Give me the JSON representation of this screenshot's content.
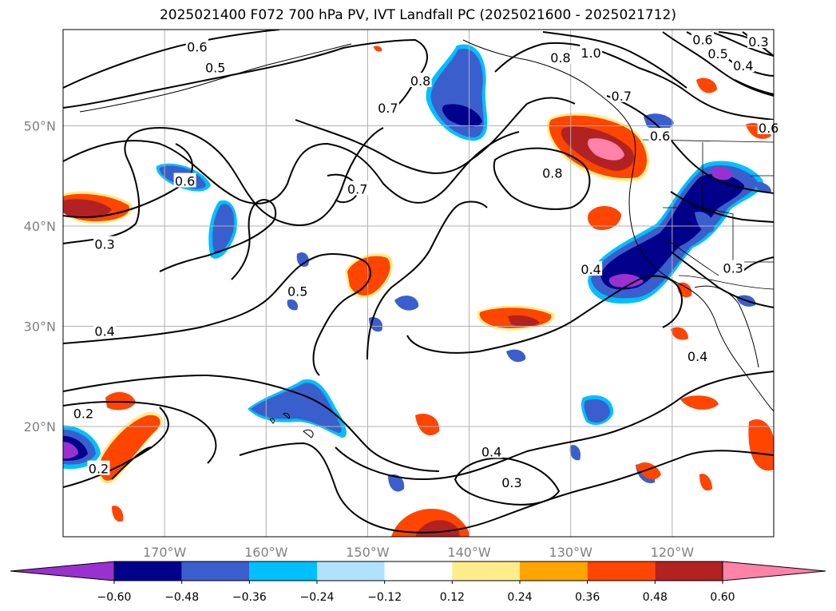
{
  "title": "2025021400 F072 700 hPa PV, IVT Landfall PC (2025021600 - 2025021712)",
  "map": {
    "lon_range": [
      -180,
      -110
    ],
    "lat_range": [
      10,
      60
    ],
    "lon_ticks": [
      {
        "value": -170,
        "label": "170°W"
      },
      {
        "value": -160,
        "label": "160°W"
      },
      {
        "value": -150,
        "label": "150°W"
      },
      {
        "value": -140,
        "label": "140°W"
      },
      {
        "value": -130,
        "label": "130°W"
      },
      {
        "value": -120,
        "label": "120°W"
      }
    ],
    "lat_ticks": [
      {
        "value": 20,
        "label": "20°N"
      },
      {
        "value": 30,
        "label": "30°N"
      },
      {
        "value": 40,
        "label": "40°N"
      },
      {
        "value": 50,
        "label": "50°N"
      }
    ],
    "grid": true,
    "contour_labels": [
      {
        "text": "0.6",
        "lon": -166.8,
        "lat": 57.9
      },
      {
        "text": "0.5",
        "lon": -165.0,
        "lat": 55.8
      },
      {
        "text": "0.7",
        "lon": -148.0,
        "lat": 51.8
      },
      {
        "text": "0.8",
        "lon": -144.8,
        "lat": 54.5
      },
      {
        "text": "0.8",
        "lon": -131.0,
        "lat": 56.8
      },
      {
        "text": "1.0",
        "lon": -128.0,
        "lat": 57.3
      },
      {
        "text": "0.7",
        "lon": -125.0,
        "lat": 53.0
      },
      {
        "text": "0.6",
        "lon": -121.2,
        "lat": 49.0
      },
      {
        "text": "0.6",
        "lon": -117.0,
        "lat": 58.6
      },
      {
        "text": "0.5",
        "lon": -115.5,
        "lat": 57.2
      },
      {
        "text": "0.4",
        "lon": -113.0,
        "lat": 56.0
      },
      {
        "text": "0.3",
        "lon": -111.5,
        "lat": 58.4
      },
      {
        "text": "0.6",
        "lon": -110.5,
        "lat": 49.8
      },
      {
        "text": "0.8",
        "lon": -131.8,
        "lat": 45.3
      },
      {
        "text": "0.6",
        "lon": -168.0,
        "lat": 44.5
      },
      {
        "text": "0.7",
        "lon": -151.0,
        "lat": 43.7
      },
      {
        "text": "0.3",
        "lon": -175.9,
        "lat": 38.2
      },
      {
        "text": "0.5",
        "lon": -156.9,
        "lat": 33.5
      },
      {
        "text": "0.4",
        "lon": -128.0,
        "lat": 35.7
      },
      {
        "text": "0.3",
        "lon": -114.0,
        "lat": 35.8
      },
      {
        "text": "0.4",
        "lon": -175.9,
        "lat": 29.5
      },
      {
        "text": "0.4",
        "lon": -117.5,
        "lat": 27.0
      },
      {
        "text": "0.2",
        "lon": -178.0,
        "lat": 21.3
      },
      {
        "text": "0.2",
        "lon": -176.5,
        "lat": 15.8
      },
      {
        "text": "0.4",
        "lon": -137.8,
        "lat": 17.5
      },
      {
        "text": "0.3",
        "lon": -135.8,
        "lat": 14.4
      }
    ]
  },
  "colorbar": {
    "ticks": [
      "−0.60",
      "−0.48",
      "−0.36",
      "−0.24",
      "−0.12",
      "0.12",
      "0.24",
      "0.36",
      "0.48",
      "0.60"
    ],
    "colors": [
      "#9b30d0",
      "#00008b",
      "#3a5fcd",
      "#00bfff",
      "#b0e2ff",
      "#ffffff",
      "#ffec8b",
      "#ffa500",
      "#ff4500",
      "#b22222",
      "#ff82ab"
    ]
  }
}
